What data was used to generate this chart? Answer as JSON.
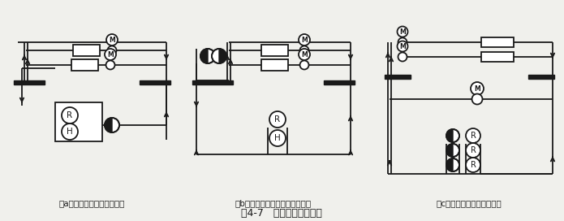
{
  "title": "图4-7   单式水泵供水系统",
  "subtitle_a": "（a）单式水泵定流量水系统",
  "subtitle_b": "（b）分区单式水泵定流量水系统",
  "subtitle_c": "（c）单式水泵变流量水系统",
  "bg_color": "#f0f0ec",
  "line_color": "#1a1a1a",
  "lw": 1.3,
  "title_fontsize": 9,
  "label_fontsize": 7.5
}
